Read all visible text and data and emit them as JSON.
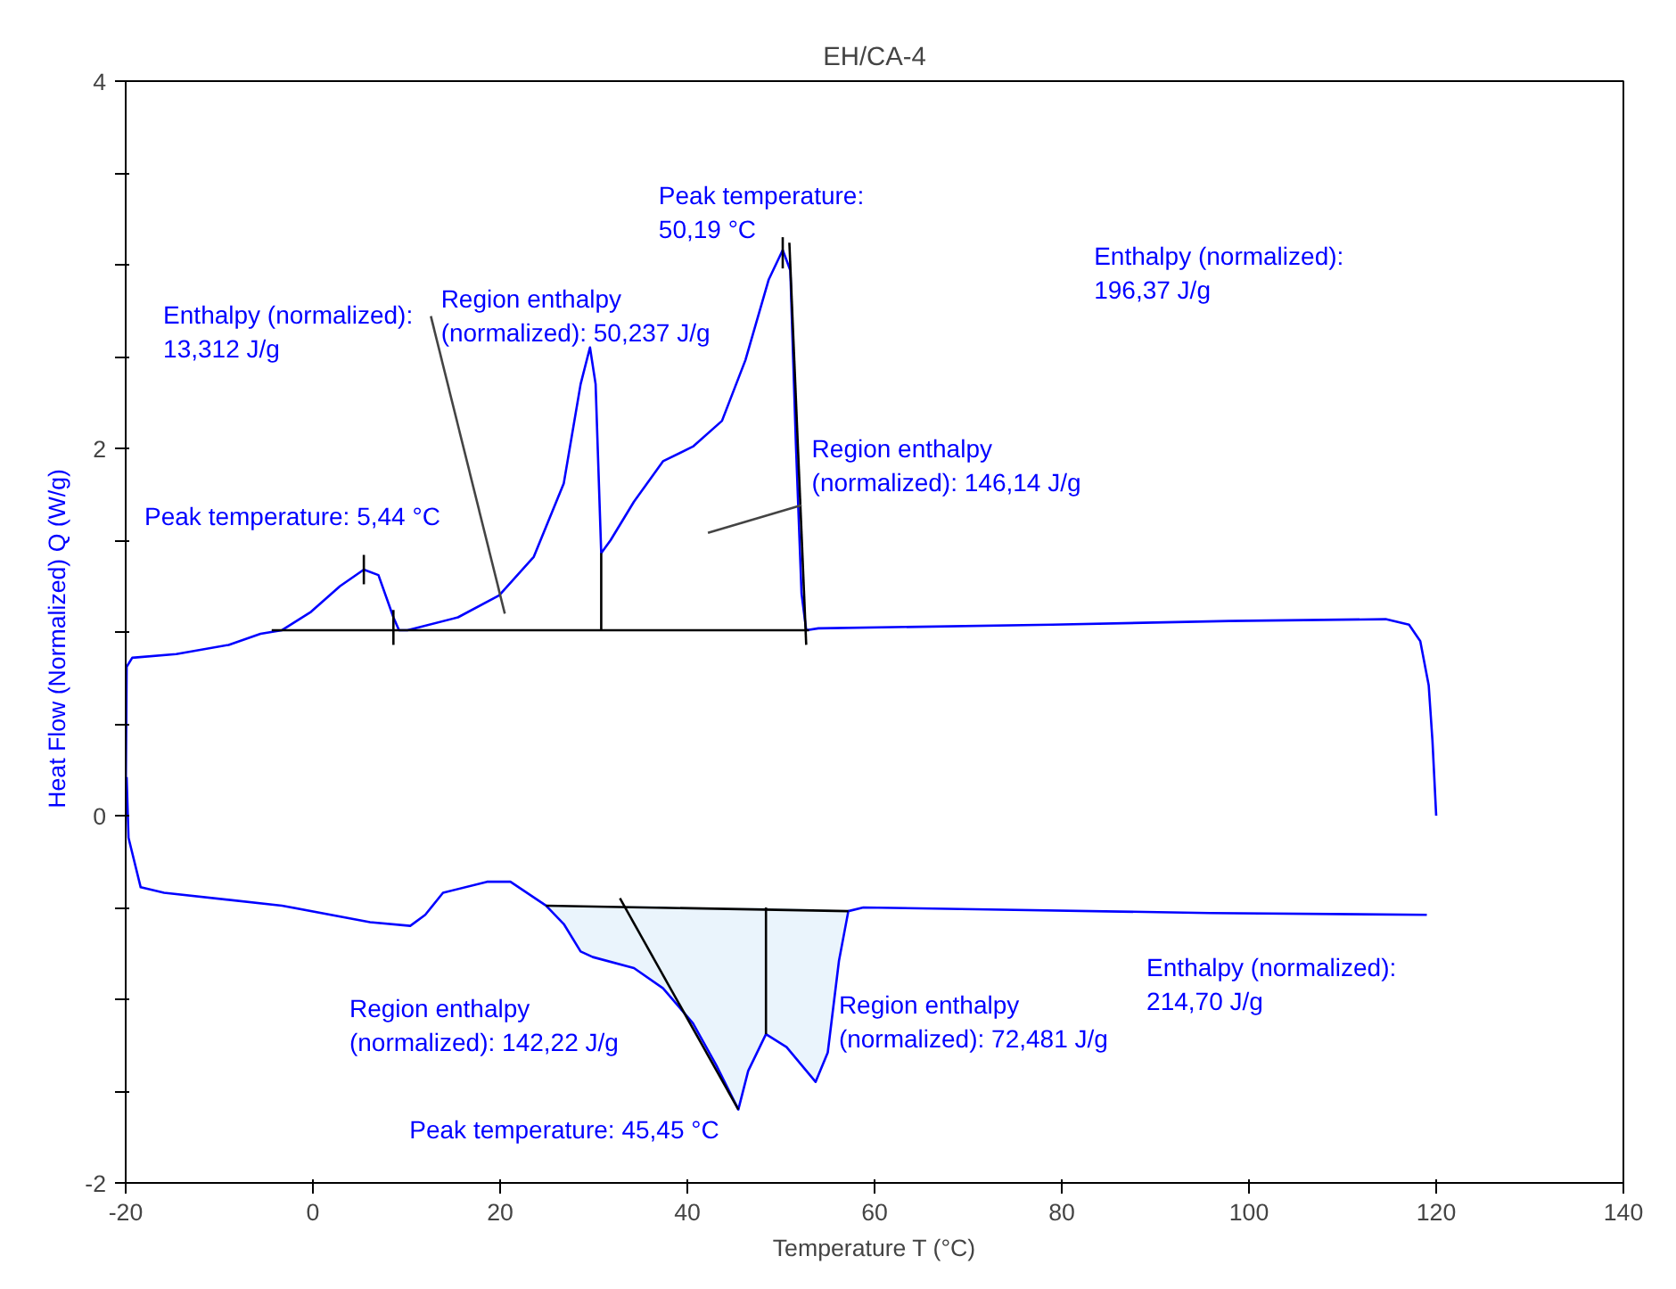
{
  "chart_data": {
    "type": "line",
    "title": "EH/CA-4",
    "xlabel": "Temperature T (°C)",
    "ylabel": "Heat Flow (Normalized)  Q  (W/g)",
    "xlim": [
      -20,
      140
    ],
    "xticks": [
      -20,
      0,
      20,
      40,
      60,
      80,
      100,
      120,
      140
    ],
    "ylim": [
      -2,
      4
    ],
    "yticks": [
      -2,
      {
        "value": -1.5,
        "label": null
      },
      {
        "value": -1,
        "label": null
      },
      {
        "value": -0.5,
        "label": null
      },
      0,
      {
        "value": 0.5,
        "label": null
      },
      {
        "value": 1,
        "label": null
      },
      {
        "value": 1.5,
        "label": null
      },
      2,
      {
        "value": 2.5,
        "label": null
      },
      {
        "value": 3,
        "label": null
      },
      {
        "value": 3.5,
        "label": null
      },
      4
    ],
    "grid": false,
    "line_style": "solid",
    "marker": "none",
    "series": [
      {
        "color": "#0000ff",
        "x": [
          -20,
          -19.9,
          -19.3,
          -14.6,
          -9.0,
          -5.6,
          -3.3,
          -0.2,
          2.9,
          5.44,
          7.0,
          8.6,
          9.2,
          10.1,
          15.5,
          19.9,
          23.6,
          26.8,
          28.6,
          29.6,
          30.2,
          30.8,
          31.8,
          34.3,
          37.4,
          40.6,
          43.7,
          46.2,
          48.7,
          50.19,
          51.0,
          51.6,
          52.2,
          52.7,
          54.0,
          79.0,
          97.9,
          114.6,
          117.1,
          118.3,
          119.2,
          119.6,
          120
        ],
        "values": [
          0.06,
          0.81,
          0.86,
          0.88,
          0.93,
          0.99,
          1.01,
          1.11,
          1.25,
          1.34,
          1.31,
          1.08,
          1.01,
          1.01,
          1.08,
          1.2,
          1.41,
          1.81,
          2.35,
          2.55,
          2.35,
          1.43,
          1.5,
          1.71,
          1.93,
          2.01,
          2.15,
          2.48,
          2.92,
          3.08,
          2.97,
          2.02,
          1.21,
          1.01,
          1.02,
          1.04,
          1.06,
          1.07,
          1.04,
          0.95,
          0.71,
          0.41,
          0.0
        ]
      },
      {
        "color": "#0000ff",
        "x": [
          -19.9,
          -19.7,
          -18.4,
          -15.9,
          -3.3,
          6.1,
          10.4,
          12.0,
          13.9,
          18.6,
          21.1,
          24.9,
          26.8,
          28.6,
          29.9,
          34.3,
          37.4,
          40.6,
          43.1,
          45.45,
          46.5,
          48.4,
          50.6,
          53.7,
          55.0,
          56.2,
          57.2,
          58.8,
          70.7,
          95.8,
          119.0
        ],
        "values": [
          0.21,
          -0.12,
          -0.39,
          -0.42,
          -0.49,
          -0.58,
          -0.6,
          -0.54,
          -0.42,
          -0.36,
          -0.36,
          -0.49,
          -0.59,
          -0.74,
          -0.77,
          -0.83,
          -0.94,
          -1.13,
          -1.36,
          -1.6,
          -1.39,
          -1.19,
          -1.26,
          -1.45,
          -1.29,
          -0.79,
          -0.52,
          -0.5,
          -0.51,
          -0.53,
          -0.54
        ],
        "lower": [
          null,
          null,
          null,
          null,
          null,
          null,
          null,
          null,
          null,
          null,
          null,
          -0.49,
          -0.59,
          -0.74,
          -0.77,
          -0.83,
          -0.94,
          -1.13,
          -1.36,
          -1.6,
          -1.39,
          -1.19,
          -1.26,
          -1.45,
          -1.29,
          -0.79,
          -0.52,
          null,
          null,
          null,
          null
        ],
        "upper": [
          null,
          null,
          null,
          null,
          null,
          null,
          null,
          null,
          null,
          null,
          null,
          -0.49,
          -0.49,
          -0.49,
          -0.49,
          -0.49,
          -0.49,
          -0.5,
          -0.5,
          -0.5,
          -0.5,
          -0.5,
          -0.5,
          -0.51,
          -0.51,
          -0.52,
          -0.52,
          null,
          null,
          null,
          null
        ]
      },
      {
        "color": "#000000",
        "x": [
          -4.4,
          53.0
        ],
        "values": [
          1.01,
          1.01
        ]
      },
      {
        "color": "#000000",
        "x": [
          30.8,
          30.8
        ],
        "values": [
          1.01,
          1.43
        ]
      },
      {
        "color": "#000000",
        "x": [
          50.9,
          52.7
        ],
        "values": [
          3.12,
          0.93
        ]
      },
      {
        "color": "#000000",
        "x": [
          50.19,
          50.19
        ],
        "values": [
          3.15,
          2.98
        ]
      },
      {
        "color": "#000000",
        "x": [
          8.6,
          8.6
        ],
        "values": [
          1.12,
          0.93
        ]
      },
      {
        "color": "#000000",
        "x": [
          5.44,
          5.44
        ],
        "values": [
          1.42,
          1.26
        ]
      },
      {
        "color": "#000000",
        "x": [
          24.9,
          57.2
        ],
        "values": [
          -0.49,
          -0.52
        ]
      },
      {
        "color": "#000000",
        "x": [
          48.4,
          48.4
        ],
        "values": [
          -0.5,
          -1.19
        ]
      },
      {
        "color": "#000000",
        "x": [
          32.8,
          45.45
        ],
        "values": [
          -0.45,
          -1.6
        ]
      },
      {
        "color": "#444444",
        "x": [
          12.6,
          20.5
        ],
        "values": [
          2.72,
          1.1
        ]
      },
      {
        "color": "#444444",
        "x": [
          42.2,
          52.2
        ],
        "values": [
          1.54,
          1.69
        ]
      }
    ],
    "annotations": [
      "Enthalpy (normalized):\n13,312 J/g",
      "Region enthalpy\n(normalized): 50,237 J/g",
      "Peak temperature:\n50,19 °C",
      "Enthalpy (normalized):\n196,37 J/g",
      "Region enthalpy\n(normalized): 146,14 J/g",
      "Peak temperature: 5,44 °C",
      "Region enthalpy\n(normalized): 142,22 J/g",
      "Region enthalpy\n(normalized): 72,481 J/g",
      "Enthalpy (normalized):\n214,70 J/g",
      "Peak temperature: 45,45 °C"
    ]
  }
}
